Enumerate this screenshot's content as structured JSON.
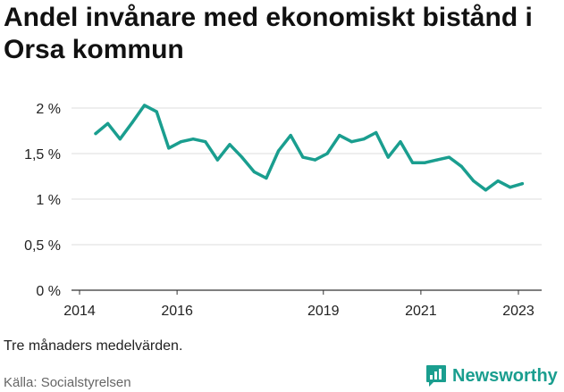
{
  "title": "Andel invånare med ekonomiskt bistånd i Orsa kommun",
  "note": "Tre månaders medelvärden.",
  "source": "Källa: Socialstyrelsen",
  "brand": "Newsworthy",
  "colors": {
    "line": "#1a9e8f",
    "grid": "#dddddd",
    "axis": "#333333",
    "brand": "#1a9e8f"
  },
  "chart_data": {
    "type": "line",
    "title": "Andel invånare med ekonomiskt bistånd i Orsa kommun",
    "xlabel": "",
    "ylabel": "",
    "xlim": [
      2014,
      2023.4
    ],
    "ylim": [
      0,
      2.2
    ],
    "y_ticks": [
      0,
      0.5,
      1,
      1.5,
      2
    ],
    "y_tick_labels": [
      "0 %",
      "0,5 %",
      "1 %",
      "1,5 %",
      "2 %"
    ],
    "x_ticks": [
      2014,
      2016,
      2019,
      2021,
      2023
    ],
    "x_tick_labels": [
      "2014",
      "2016",
      "2019",
      "2021",
      "2023"
    ],
    "grid": true,
    "series": [
      {
        "x": [
          2014.33,
          2014.58,
          2014.83,
          2015.08,
          2015.33,
          2015.58,
          2015.83,
          2016.08,
          2016.33,
          2016.58,
          2016.83,
          2017.08,
          2017.33,
          2017.58,
          2017.83,
          2018.08,
          2018.33,
          2018.58,
          2018.83,
          2019.08,
          2019.33,
          2019.58,
          2019.83,
          2020.08,
          2020.33,
          2020.58,
          2020.83,
          2021.08,
          2021.33,
          2021.58,
          2021.83,
          2022.08,
          2022.33,
          2022.58,
          2022.83,
          2023.08
        ],
        "y": [
          1.72,
          1.83,
          1.66,
          1.84,
          2.03,
          1.96,
          1.56,
          1.63,
          1.66,
          1.63,
          1.43,
          1.6,
          1.46,
          1.3,
          1.23,
          1.53,
          1.7,
          1.46,
          1.43,
          1.5,
          1.7,
          1.63,
          1.66,
          1.73,
          1.46,
          1.63,
          1.4,
          1.4,
          1.43,
          1.46,
          1.36,
          1.2,
          1.1,
          1.2,
          1.13,
          1.17
        ]
      }
    ]
  }
}
